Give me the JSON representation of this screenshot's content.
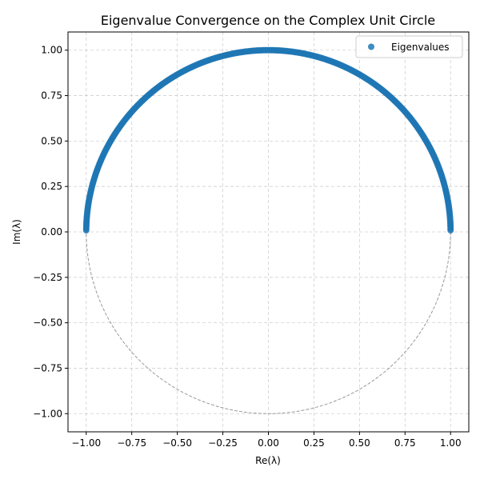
{
  "chart_data": {
    "type": "scatter",
    "title": "Eigenvalue Convergence on the Complex Unit Circle",
    "xlabel": "Re(λ)",
    "ylabel": "Im(λ)",
    "xlim": [
      -1.1,
      1.1
    ],
    "ylim": [
      -1.1,
      1.1
    ],
    "xticks": [
      -1.0,
      -0.75,
      -0.5,
      -0.25,
      0.0,
      0.25,
      0.5,
      0.75,
      1.0
    ],
    "yticks": [
      -1.0,
      -0.75,
      -0.5,
      -0.25,
      0.0,
      0.25,
      0.5,
      0.75,
      1.0
    ],
    "xtick_labels": [
      "−1.00",
      "−0.75",
      "−0.50",
      "−0.25",
      "0.00",
      "0.25",
      "0.50",
      "0.75",
      "1.00"
    ],
    "ytick_labels": [
      "−1.00",
      "−0.75",
      "−0.50",
      "−0.25",
      "0.00",
      "0.25",
      "0.50",
      "0.75",
      "1.00"
    ],
    "grid": true,
    "legend_position": "top-right",
    "reference_curve": {
      "type": "unit-circle",
      "radius": 1,
      "style": "dashed",
      "color": "#999999"
    },
    "series": [
      {
        "name": "Eigenvalues",
        "color": "#1f77b4",
        "marker": "circle",
        "points": {
          "rule": "upper unit semicircle, angle θ in degrees, x = cos θ, y = sin θ",
          "theta_deg_start": 0.5,
          "theta_deg_end": 179.5,
          "theta_deg_step": 0.5
        }
      }
    ]
  }
}
